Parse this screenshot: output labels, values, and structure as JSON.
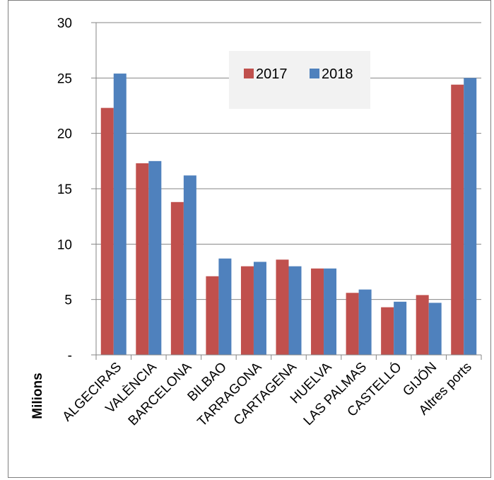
{
  "chart_data": {
    "type": "bar",
    "title": "",
    "xlabel": "",
    "ylabel": "Milions",
    "ylim": [
      0,
      30
    ],
    "yticks": [
      0,
      5,
      10,
      15,
      20,
      25,
      30
    ],
    "ytick_labels": [
      "-",
      "5",
      "10",
      "15",
      "20",
      "25",
      "30"
    ],
    "grid": "y-major",
    "legend_position": "top-right",
    "categories": [
      "ALGECIRAS",
      "VALÈNCIA",
      "BARCELONA",
      "BILBAO",
      "TARRAGONA",
      "CARTAGENA",
      "HUELVA",
      "LAS PALMAS",
      "CASTELLÓ",
      "GIJÓN",
      "Altres ports"
    ],
    "series": [
      {
        "name": "2017",
        "color": "#c0504d",
        "values": [
          22.3,
          17.3,
          13.8,
          7.1,
          8.0,
          8.6,
          7.8,
          5.6,
          4.3,
          5.4,
          24.4
        ]
      },
      {
        "name": "2018",
        "color": "#4f81bd",
        "values": [
          25.4,
          17.5,
          16.2,
          8.7,
          8.4,
          8.0,
          7.8,
          5.9,
          4.8,
          4.7,
          25.0
        ]
      }
    ]
  }
}
